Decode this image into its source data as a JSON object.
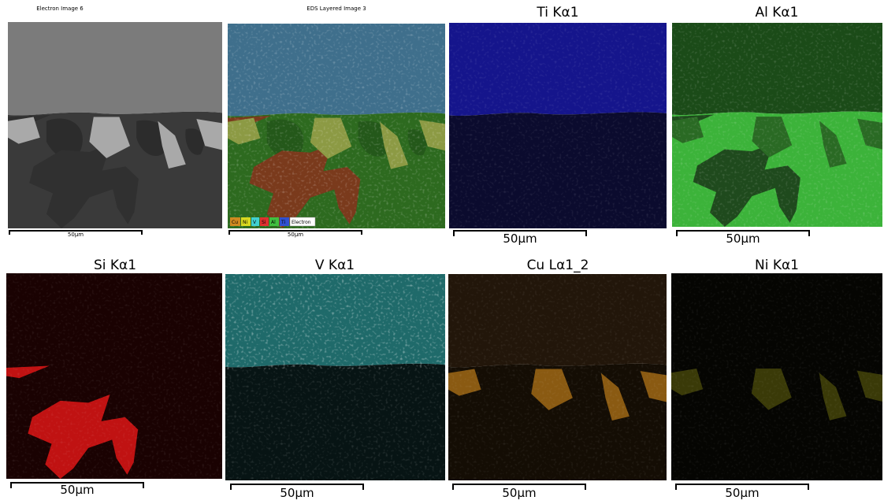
{
  "panels": [
    {
      "title": "Electron Image 6",
      "scale": "50µm"
    },
    {
      "title": "EDS Layered Image 3",
      "scale": "50µm"
    },
    {
      "title": "Ti Kα1",
      "scale": "50µm"
    },
    {
      "title": "Al Kα1",
      "scale": "50µm"
    },
    {
      "title": "Si Kα1",
      "scale": "50µm"
    },
    {
      "title": "V Kα1",
      "scale": "50µm"
    },
    {
      "title": "Cu Lα1_2",
      "scale": "50µm"
    },
    {
      "title": "Ni Kα1",
      "scale": "50µm"
    }
  ],
  "legend": [
    "Cu",
    "Ni",
    "V",
    "Si",
    "Al",
    "Ti",
    "Electron"
  ]
}
